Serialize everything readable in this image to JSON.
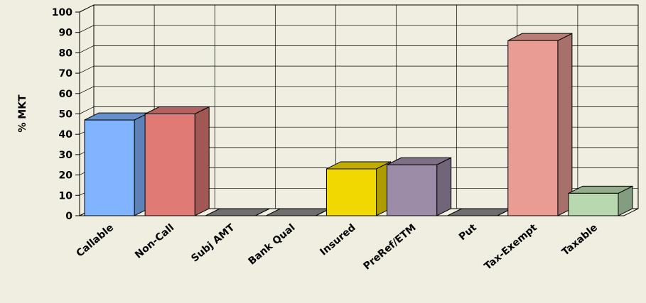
{
  "chart_data": {
    "type": "bar",
    "ylabel": "% MKT",
    "categories": [
      "Callable",
      "Non-Call",
      "Subj AMT",
      "Bank Qual",
      "Insured",
      "PreRef/ETM",
      "Put",
      "Tax-Exempt",
      "Taxable"
    ],
    "values": [
      47,
      50,
      0,
      0,
      23,
      25,
      0,
      86,
      11
    ],
    "colors": [
      "#80b4ff",
      "#e07a74",
      "#8a8a8a",
      "#8a8a8a",
      "#f0d800",
      "#9c8ca8",
      "#8a8a8a",
      "#e89c94",
      "#b8d8b0"
    ],
    "ylim": [
      0,
      100
    ],
    "yticks": [
      0,
      10,
      20,
      30,
      40,
      50,
      60,
      70,
      80,
      90,
      100
    ],
    "grid": true
  }
}
